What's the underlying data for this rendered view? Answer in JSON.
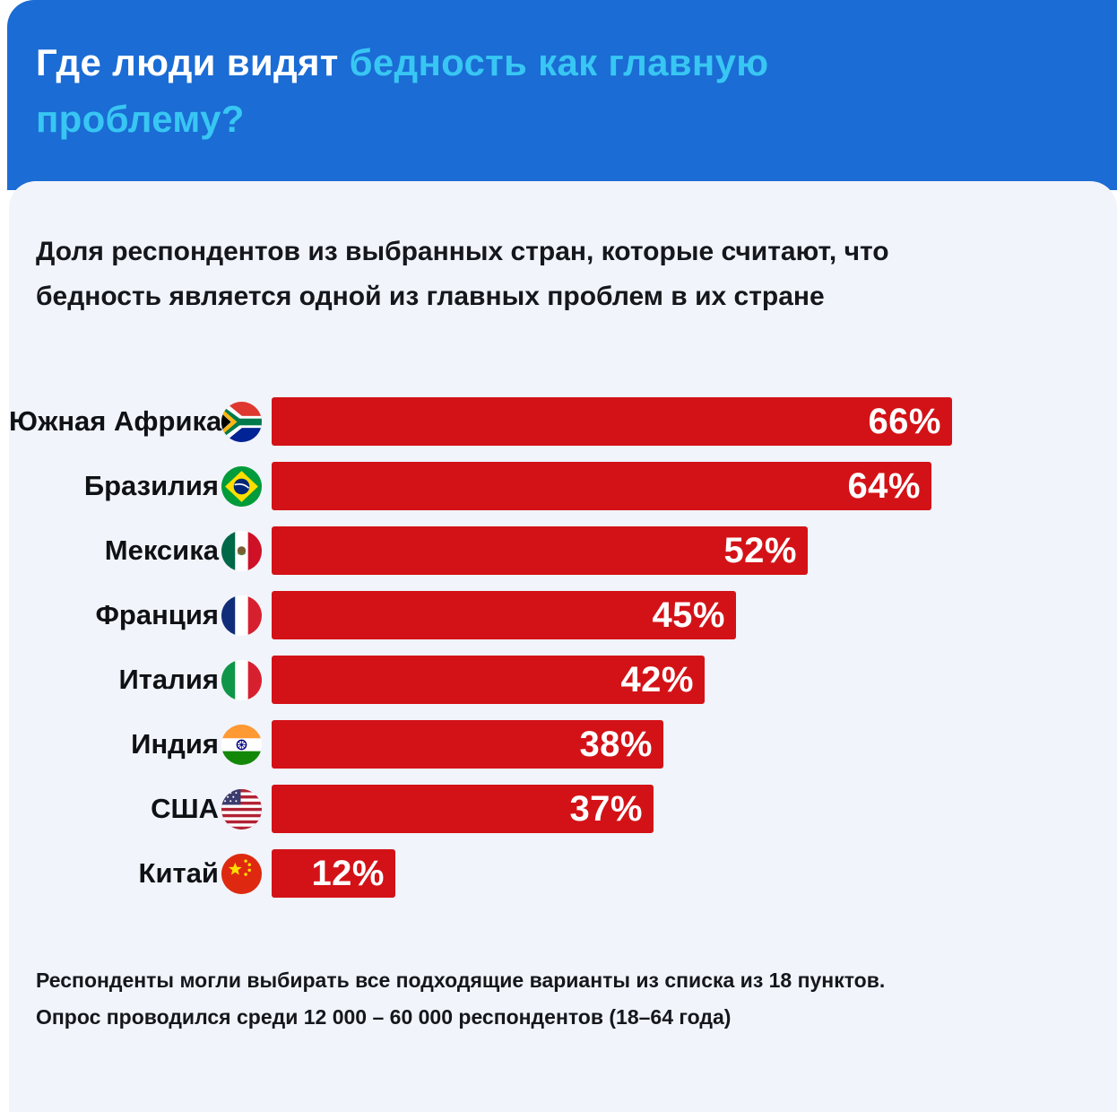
{
  "header": {
    "title_line1_white": "Где люди видят ",
    "title_line1_accent": "бедность как главную",
    "title_line2_accent": "проблему?",
    "bg_color": "#1b6cd4",
    "accent_color": "#38c6f3"
  },
  "subtitle_lines": [
    "Доля респондентов из выбранных стран, которые считают, что",
    "бедность является одной из главных проблем в их стране"
  ],
  "chart_data": {
    "type": "bar",
    "orientation": "horizontal",
    "unit": "%",
    "categories": [
      "Южная Африка",
      "Бразилия",
      "Мексика",
      "Франция",
      "Италия",
      "Индия",
      "США",
      "Китай"
    ],
    "values": [
      66,
      64,
      52,
      45,
      42,
      38,
      37,
      12
    ],
    "value_labels": [
      "66%",
      "64%",
      "52%",
      "45%",
      "42%",
      "38%",
      "37%",
      "12%"
    ],
    "flags": [
      "south-africa",
      "brazil",
      "mexico",
      "france",
      "italy",
      "india",
      "usa",
      "china"
    ],
    "bar_color": "#d31217",
    "value_label_color": "#ffffff",
    "legend": "none",
    "grid": false,
    "xlim": [
      0,
      78
    ]
  },
  "footnotes": [
    "Респонденты могли выбирать все подходящие варианты из списка из 18 пунктов.",
    "Опрос проводился среди 12 000 – 60 000 респондентов (18–64 года)"
  ]
}
